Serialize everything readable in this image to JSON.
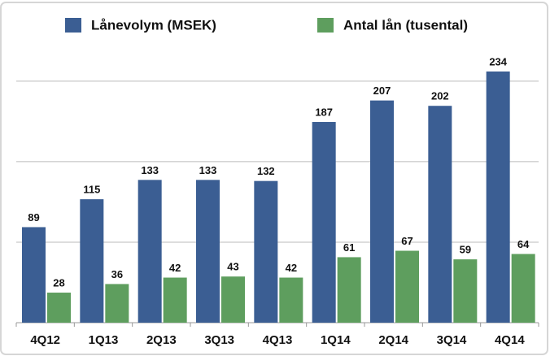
{
  "chart_data": {
    "type": "bar",
    "categories": [
      "4Q12",
      "1Q13",
      "2Q13",
      "3Q13",
      "4Q13",
      "1Q14",
      "2Q14",
      "3Q14",
      "4Q14"
    ],
    "series": [
      {
        "name": "Lånevolym (MSEK)",
        "color": "#3b5e93",
        "values": [
          89,
          115,
          133,
          133,
          132,
          187,
          207,
          202,
          234
        ]
      },
      {
        "name": "Antal lån (tusental)",
        "color": "#5e9e5e",
        "values": [
          28,
          36,
          42,
          43,
          42,
          61,
          67,
          59,
          64
        ]
      }
    ],
    "ylim": [
      0,
      290
    ],
    "yticks": [
      0,
      75,
      150,
      225
    ],
    "grid": true,
    "legend": "top"
  }
}
